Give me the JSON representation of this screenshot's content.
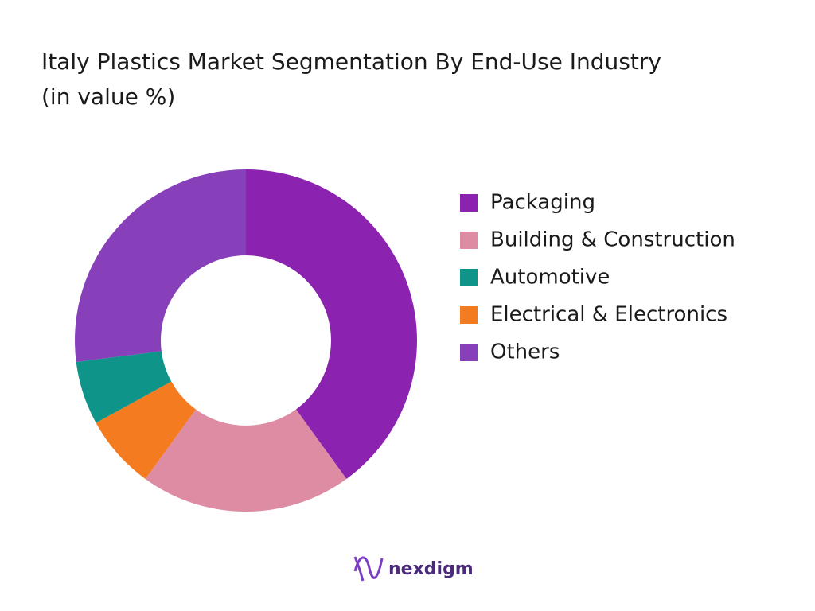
{
  "chart_data": {
    "type": "donut",
    "title": "Italy Plastics Market Segmentation By End-Use Industry (in value %)",
    "categories": [
      "Packaging",
      "Building & Construction",
      "Automotive",
      "Electrical & Electronics",
      "Others"
    ],
    "values": [
      40,
      20,
      6,
      7,
      27
    ],
    "colors": [
      "#8b22b0",
      "#de8ba4",
      "#0e9488",
      "#f47b20",
      "#8840ba"
    ],
    "legend": "right"
  },
  "brand": "nexdigm"
}
